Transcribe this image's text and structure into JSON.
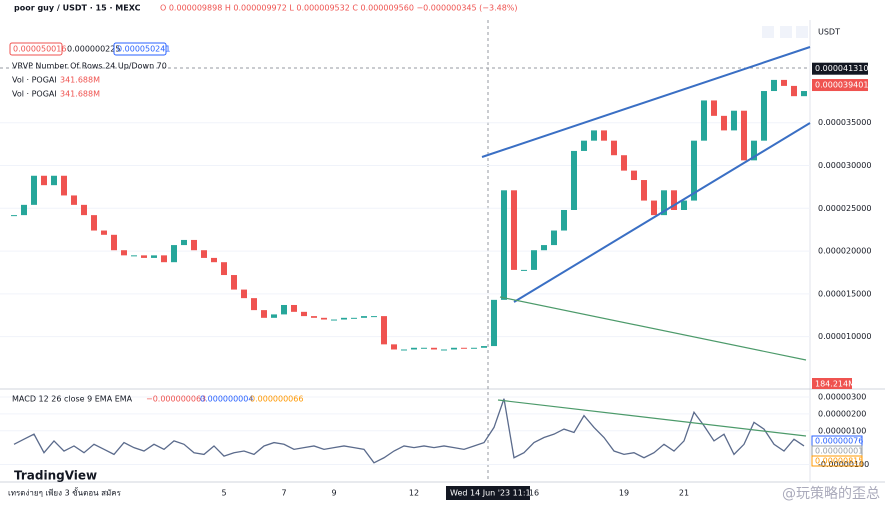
{
  "header": {
    "symbol": "poor guy / USDT · 15 · MEXC",
    "ohlc": "O 0.000009898 H 0.000009972 L 0.000009532 C 0.000009560 −0.000000345 (−3.48%)",
    "boxes": [
      "0.000050016",
      "0.000000225",
      "0.000050241"
    ],
    "indicators": [
      {
        "name": "VRVP Number Of Rows 24 Up/Down 70"
      },
      {
        "name": "Vol · POGAI",
        "value": "341.688M"
      },
      {
        "name": "Vol · POGAI",
        "value": "341.688M"
      }
    ],
    "currency": "USDT"
  },
  "chart_data": [
    {
      "type": "candlestick",
      "up_color": "#26a69a",
      "down_color": "#ef5350",
      "categories": [
        null,
        null,
        null,
        null,
        null,
        null,
        null,
        null,
        null,
        null,
        null,
        null,
        null,
        null,
        null,
        null,
        null,
        null,
        null,
        null,
        null,
        "5",
        null,
        null,
        null,
        null,
        null,
        "7",
        null,
        null,
        null,
        null,
        "9",
        null,
        null,
        null,
        null,
        null,
        null,
        null,
        "12",
        null,
        null,
        null,
        null,
        null,
        null,
        null,
        null,
        null,
        null,
        null,
        "16",
        null,
        null,
        null,
        null,
        null,
        null,
        null,
        null,
        "19",
        null,
        null,
        null,
        null,
        null,
        "21",
        null,
        null,
        null,
        null,
        null,
        null,
        null,
        null,
        null,
        null,
        null,
        null
      ],
      "values": [
        2.42e-05,
        2.54e-05,
        2.88e-05,
        2.77e-05,
        2.88e-05,
        2.65e-05,
        2.54e-05,
        2.42e-05,
        2.24e-05,
        2.19e-05,
        2.01e-05,
        1.95e-05,
        1.95e-05,
        1.92e-05,
        1.95e-05,
        1.87e-05,
        2.07e-05,
        2.13e-05,
        2.01e-05,
        1.92e-05,
        1.87e-05,
        1.72e-05,
        1.55e-05,
        1.45e-05,
        1.31e-05,
        1.22e-05,
        1.26e-05,
        1.37e-05,
        1.29e-05,
        1.24e-05,
        1.22e-05,
        1.2e-05,
        1.2e-05,
        1.22e-05,
        1.22e-05,
        1.24e-05,
        1.24e-05,
        9.1e-06,
        8.5e-06,
        8.5e-06,
        8.7e-06,
        8.7e-06,
        8.5e-06,
        8.5e-06,
        8.7e-06,
        8.6e-06,
        8.7e-06,
        8.9e-06,
        1.43e-05,
        2.71e-05,
        1.78e-05,
        1.78e-05,
        2.01e-05,
        2.07e-05,
        2.24e-05,
        2.48e-05,
        3.17e-05,
        3.29e-05,
        3.41e-05,
        3.29e-05,
        3.12e-05,
        2.94e-05,
        2.83e-05,
        2.59e-05,
        2.42e-05,
        2.71e-05,
        2.48e-05,
        2.59e-05,
        3.29e-05,
        3.76e-05,
        3.58e-05,
        3.41e-05,
        3.64e-05,
        3.06e-05,
        3.29e-05,
        3.87e-05,
        4e-05,
        3.93e-05,
        3.81e-05,
        3.87e-05
      ],
      "ylim": [
        4e-06,
        4.7e-05
      ],
      "yticks": [
        {
          "value": 3.5e-05,
          "label": "0.000035000"
        },
        {
          "value": 3e-05,
          "label": "0.000030000"
        },
        {
          "value": 2.5e-05,
          "label": "0.000025000"
        },
        {
          "value": 2e-05,
          "label": "0.000020000"
        },
        {
          "value": 1.5e-05,
          "label": "0.000015000"
        },
        {
          "value": 1e-05,
          "label": "0.000010000"
        }
      ],
      "grid": true,
      "price_labels": [
        {
          "value": 4.131e-05,
          "label": "0.000041310",
          "color": "#131722"
        },
        {
          "value": 3.9401e-05,
          "label": "0.000039401",
          "color": "#ef5350"
        }
      ]
    },
    {
      "type": "line",
      "title": "MACD 12 26 close 9 EMA EMA",
      "readouts": [
        "−0.000000063",
        "0.000000004",
        "0.000000066"
      ],
      "color": "#5b6b8c",
      "values": [
        2e-07,
        5e-07,
        8e-07,
        -3e-07,
        4e-07,
        -2e-07,
        1e-07,
        -3e-07,
        2e-07,
        -1e-07,
        -4e-07,
        3e-07,
        0,
        -2e-07,
        2e-07,
        -1e-07,
        4e-07,
        2e-07,
        -3e-07,
        -4e-07,
        1e-07,
        -5e-07,
        -3e-07,
        -2e-07,
        -4e-07,
        1e-07,
        3e-07,
        2e-07,
        -1e-07,
        0,
        1e-07,
        -1e-07,
        0,
        1e-07,
        0,
        -1e-07,
        -9e-07,
        -6e-07,
        -2e-07,
        1e-07,
        0,
        1e-07,
        0,
        1e-07,
        0,
        -1e-07,
        1e-07,
        3e-07,
        1.2e-06,
        2.9e-06,
        -6e-07,
        -3e-07,
        3e-07,
        6e-07,
        8e-07,
        1.1e-06,
        9e-07,
        1.9e-06,
        1.2e-06,
        6e-07,
        -2e-07,
        -4e-07,
        -3e-07,
        -6e-07,
        -3e-07,
        2e-07,
        -2e-07,
        4e-07,
        2.1e-06,
        1.3e-06,
        4e-07,
        8e-07,
        -4e-07,
        2e-07,
        1.5e-06,
        1.1e-06,
        2e-07,
        -2e-07,
        5e-07,
        1e-07
      ],
      "ylim": [
        -1.8e-06,
        3.3e-06
      ],
      "yticks": [
        {
          "value": 3e-06,
          "label": "0.00000300"
        },
        {
          "value": 2e-06,
          "label": "0.00000200"
        },
        {
          "value": 1e-06,
          "label": "0.00000100"
        },
        {
          "value": -1e-06,
          "label": "-0.00000100"
        }
      ],
      "grid": true,
      "readout_labels": [
        {
          "label": "0.00000076",
          "color": "#2962ff"
        },
        {
          "label": "0.00000001",
          "color": "#9aa0a6"
        },
        {
          "label": "0.00000815",
          "color": "#ff9800"
        }
      ]
    }
  ],
  "volume_label": "184.214M",
  "crosshair_label": "Wed 14 Jun '23  11:15",
  "logo": "TradingView",
  "ad_text": "เทรดง่ายๆ เพียง 3 ขั้นตอน สมัคร",
  "watermark": "@玩策略的歪总"
}
